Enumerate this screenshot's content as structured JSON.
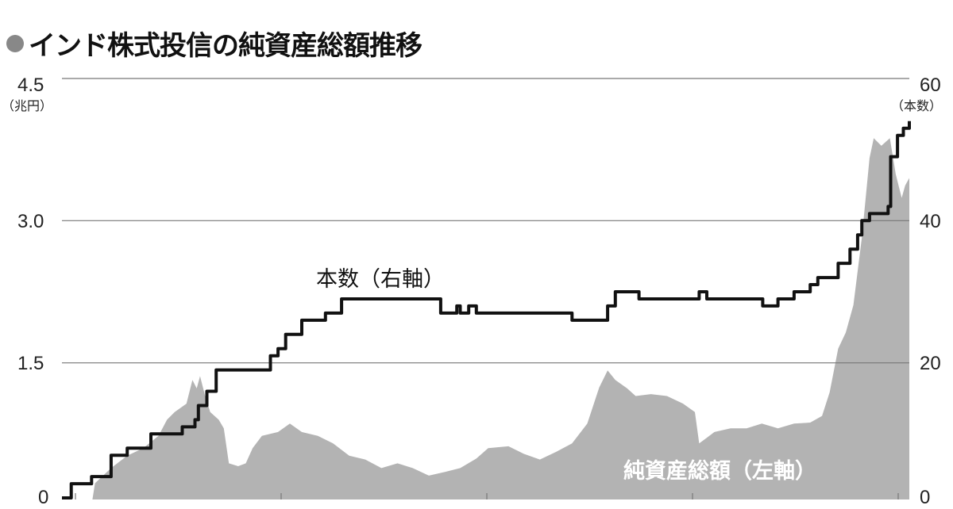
{
  "title": "インド株式投信の純資産総額推移",
  "colors": {
    "area": "#b3b3b3",
    "line": "#111111",
    "grid": "#777777",
    "bullet": "#888888"
  },
  "chart_data": {
    "type": "area+line",
    "title": "インド株式投信の純資産総額推移",
    "x_domain": [
      0,
      100
    ],
    "grid": true,
    "y_left": {
      "unit": "（兆円）",
      "ticks": [
        "0",
        "1.5",
        "3.0",
        "4.5"
      ],
      "ylim": [
        0,
        4.5
      ]
    },
    "y_right": {
      "unit": "（本数）",
      "ticks": [
        "0",
        "20",
        "40",
        "60"
      ],
      "ylim": [
        0,
        60
      ]
    },
    "series": [
      {
        "name": "純資産総額（左軸）",
        "type": "area",
        "axis": "left",
        "points": [
          [
            3.5,
            0
          ],
          [
            3.9,
            0.23
          ],
          [
            5.8,
            0.39
          ],
          [
            7.7,
            0.52
          ],
          [
            9.6,
            0.6
          ],
          [
            11.4,
            0.73
          ],
          [
            12.4,
            0.9
          ],
          [
            13.3,
            0.98
          ],
          [
            14.7,
            1.07
          ],
          [
            15.4,
            1.32
          ],
          [
            15.9,
            1.23
          ],
          [
            16.3,
            1.36
          ],
          [
            16.9,
            1.15
          ],
          [
            17.5,
            0.98
          ],
          [
            18.5,
            0.9
          ],
          [
            19.1,
            0.81
          ],
          [
            19.7,
            0.44
          ],
          [
            20.8,
            0.41
          ],
          [
            21.7,
            0.44
          ],
          [
            22.5,
            0.6
          ],
          [
            23.6,
            0.73
          ],
          [
            25.5,
            0.77
          ],
          [
            26.9,
            0.86
          ],
          [
            28.3,
            0.77
          ],
          [
            30.2,
            0.73
          ],
          [
            32.0,
            0.65
          ],
          [
            33.9,
            0.52
          ],
          [
            35.8,
            0.48
          ],
          [
            37.7,
            0.39
          ],
          [
            39.6,
            0.44
          ],
          [
            41.4,
            0.39
          ],
          [
            43.3,
            0.31
          ],
          [
            45.2,
            0.35
          ],
          [
            47.0,
            0.39
          ],
          [
            48.9,
            0.49
          ],
          [
            50.3,
            0.6
          ],
          [
            52.7,
            0.62
          ],
          [
            54.5,
            0.54
          ],
          [
            56.4,
            0.48
          ],
          [
            58.3,
            0.56
          ],
          [
            60.2,
            0.65
          ],
          [
            62.0,
            0.86
          ],
          [
            63.4,
            1.24
          ],
          [
            64.4,
            1.42
          ],
          [
            65.3,
            1.32
          ],
          [
            66.7,
            1.23
          ],
          [
            67.7,
            1.15
          ],
          [
            69.5,
            1.17
          ],
          [
            71.4,
            1.15
          ],
          [
            73.3,
            1.07
          ],
          [
            74.7,
            0.98
          ],
          [
            75.2,
            0.65
          ],
          [
            77.0,
            0.77
          ],
          [
            78.9,
            0.81
          ],
          [
            80.8,
            0.81
          ],
          [
            82.6,
            0.86
          ],
          [
            84.5,
            0.81
          ],
          [
            86.4,
            0.86
          ],
          [
            88.3,
            0.87
          ],
          [
            89.7,
            0.94
          ],
          [
            90.6,
            1.19
          ],
          [
            91.6,
            1.65
          ],
          [
            92.5,
            1.82
          ],
          [
            93.4,
            2.11
          ],
          [
            94.4,
            2.82
          ],
          [
            95.3,
            3.66
          ],
          [
            95.8,
            3.87
          ],
          [
            96.7,
            3.79
          ],
          [
            97.7,
            3.87
          ],
          [
            98.4,
            3.49
          ],
          [
            99.1,
            3.24
          ],
          [
            99.5,
            3.37
          ],
          [
            100,
            3.45
          ]
        ]
      },
      {
        "name": "本数（右軸）",
        "type": "step",
        "axis": "right",
        "points": [
          [
            0,
            1
          ],
          [
            1.1,
            3
          ],
          [
            3.5,
            4
          ],
          [
            5.8,
            7
          ],
          [
            7.7,
            8
          ],
          [
            10.5,
            10
          ],
          [
            14.2,
            11
          ],
          [
            15.7,
            12
          ],
          [
            16.1,
            14
          ],
          [
            17.1,
            16
          ],
          [
            18.2,
            19
          ],
          [
            23.6,
            19
          ],
          [
            24.6,
            21
          ],
          [
            25.5,
            22
          ],
          [
            26.4,
            24
          ],
          [
            28.3,
            26
          ],
          [
            31.1,
            27
          ],
          [
            33.0,
            29
          ],
          [
            44.7,
            27
          ],
          [
            46.6,
            28
          ],
          [
            47.0,
            27
          ],
          [
            48.0,
            28
          ],
          [
            48.9,
            27
          ],
          [
            60.2,
            26
          ],
          [
            64.4,
            28
          ],
          [
            65.3,
            30
          ],
          [
            68.1,
            29
          ],
          [
            75.2,
            30
          ],
          [
            76.1,
            29
          ],
          [
            82.7,
            28
          ],
          [
            84.5,
            29
          ],
          [
            86.4,
            30
          ],
          [
            88.3,
            31
          ],
          [
            89.2,
            32
          ],
          [
            91.6,
            34
          ],
          [
            93.0,
            36
          ],
          [
            93.9,
            38
          ],
          [
            94.4,
            40
          ],
          [
            95.3,
            41
          ],
          [
            97.5,
            42
          ],
          [
            97.8,
            49
          ],
          [
            98.6,
            52
          ],
          [
            99.3,
            53
          ],
          [
            100,
            54
          ]
        ]
      }
    ],
    "annotations": {
      "line_label": "本数（右軸）",
      "area_label": "純資産総額（左軸）"
    }
  }
}
